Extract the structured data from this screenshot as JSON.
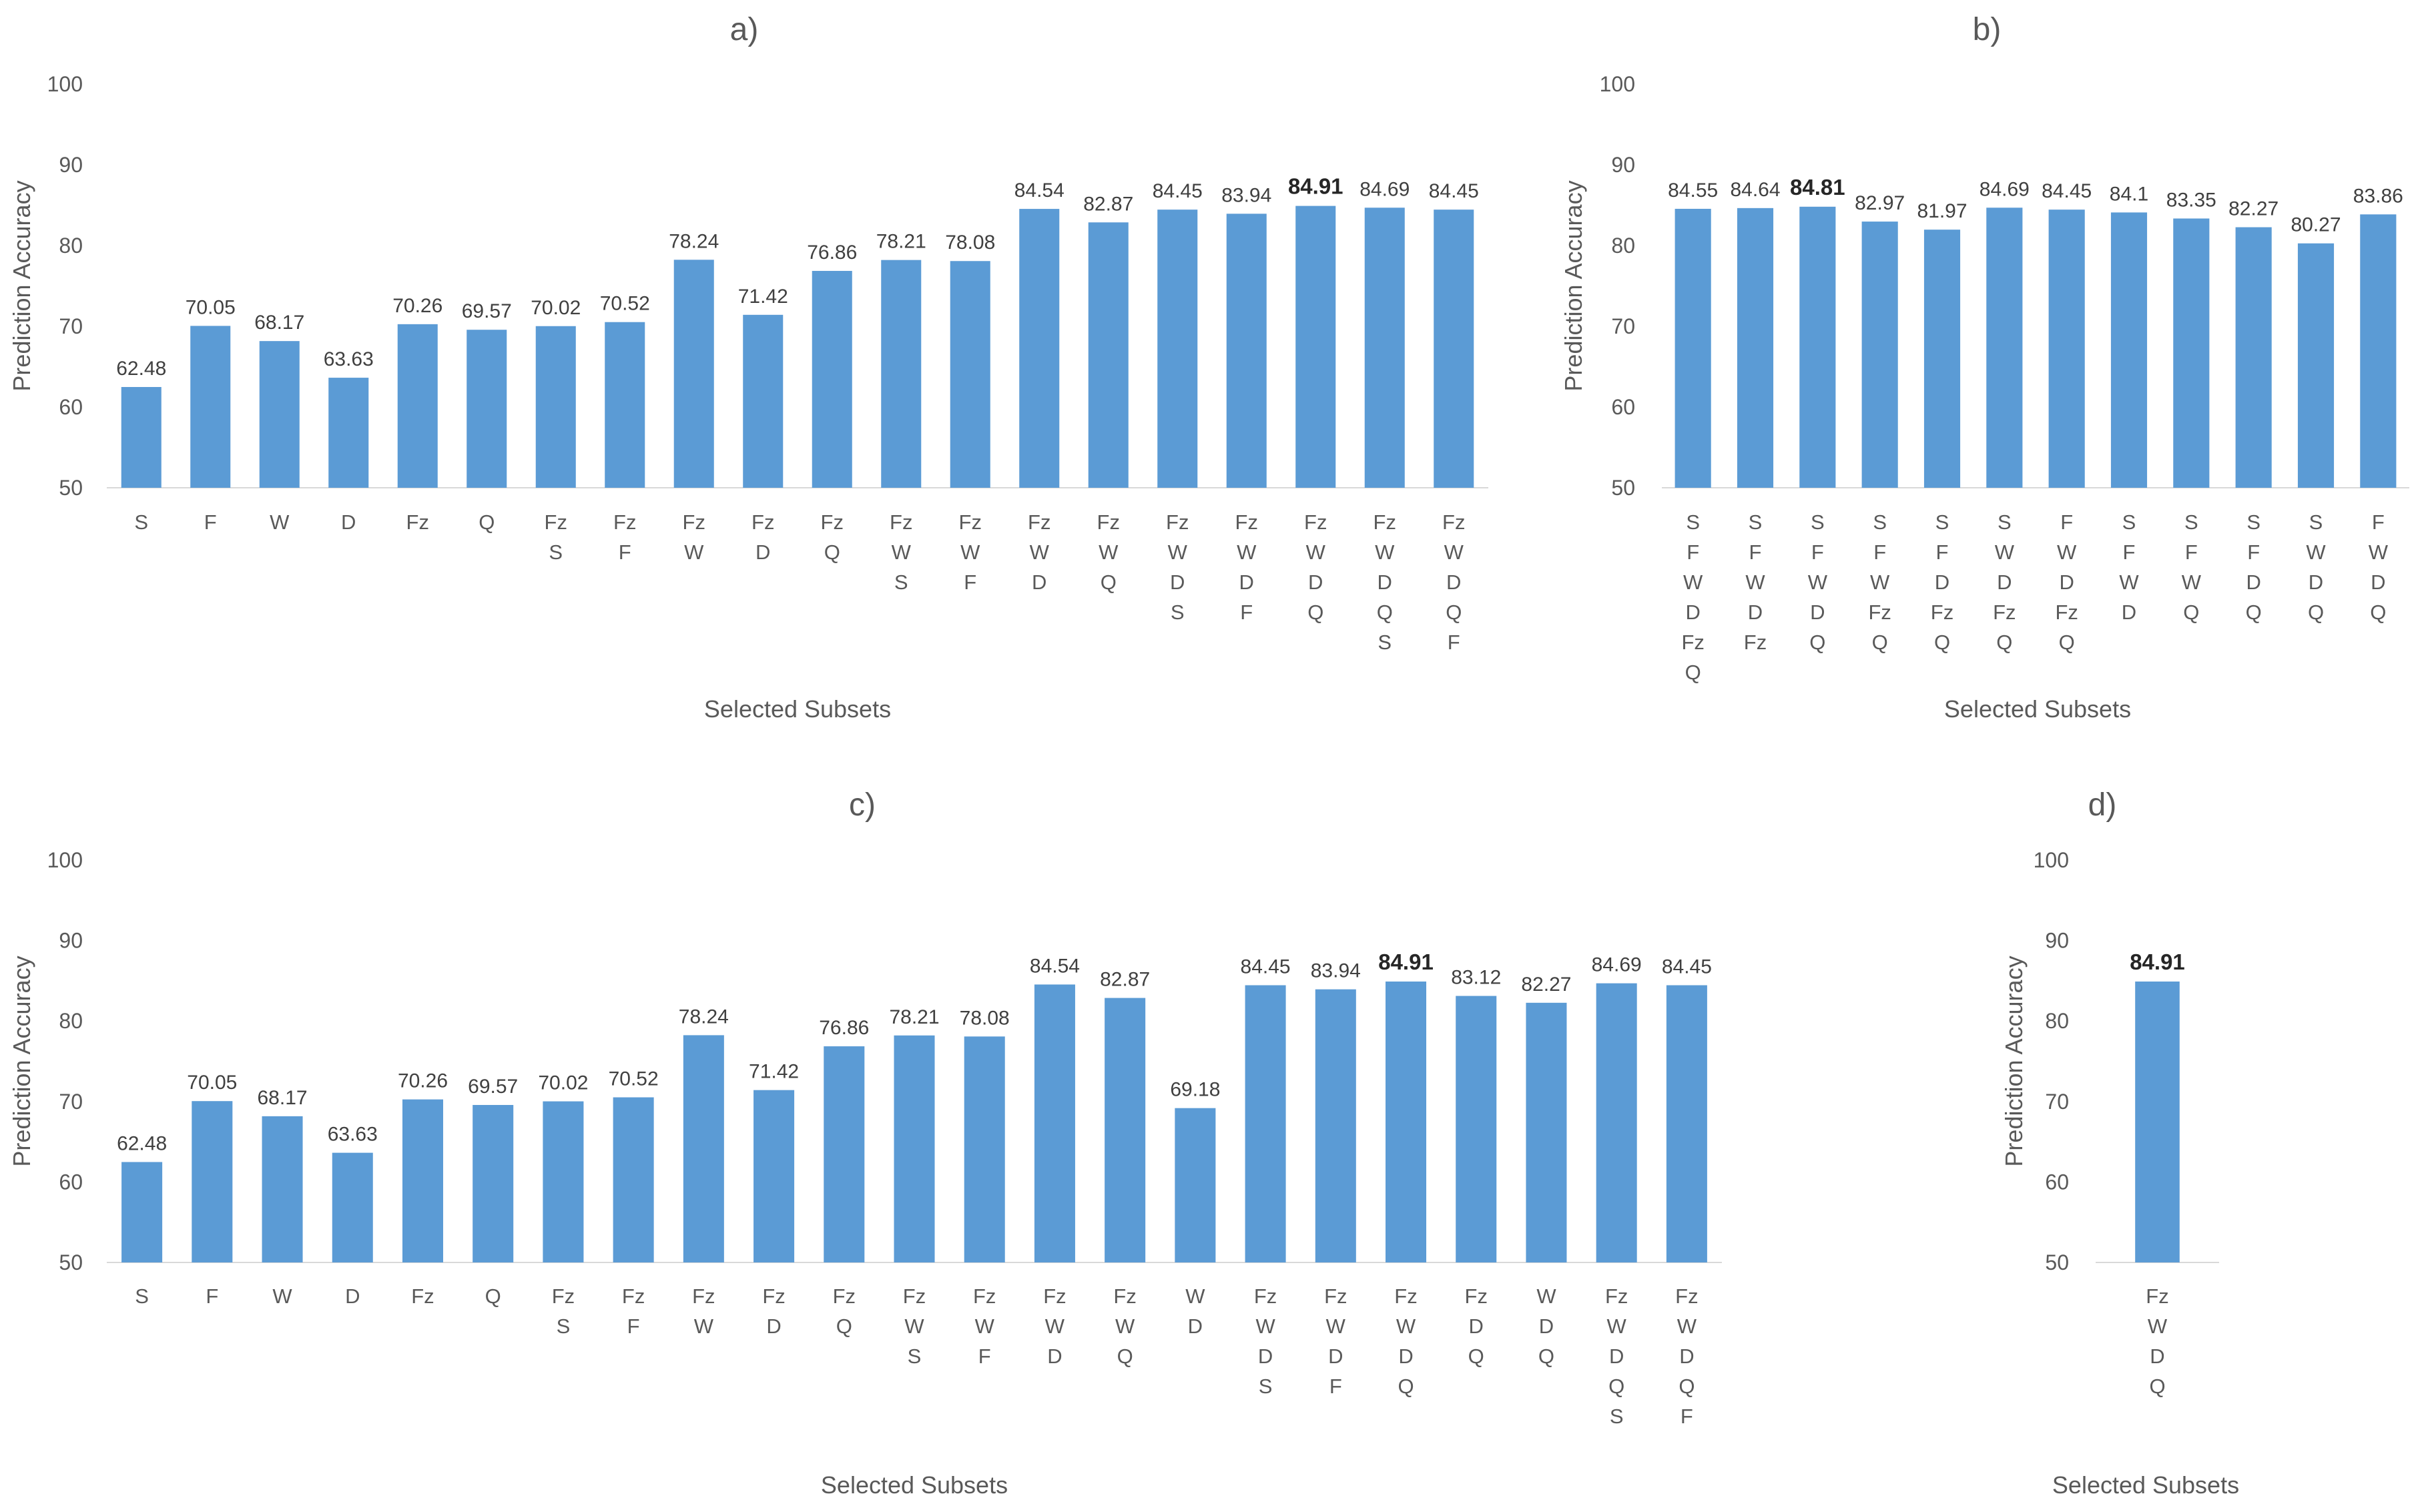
{
  "colors": {
    "bar": "#5b9bd5",
    "text": "#595959",
    "axis_line": "#d9d9d9"
  },
  "chart_data": [
    {
      "panel": "a)",
      "type": "bar",
      "title": "a)",
      "xlabel": "Selected Subsets",
      "ylabel": "Prediction Accuracy",
      "ylim": [
        50,
        100
      ],
      "yticks": [
        50,
        60,
        70,
        80,
        90,
        100
      ],
      "categories": [
        [
          "S"
        ],
        [
          "F"
        ],
        [
          "W"
        ],
        [
          "D"
        ],
        [
          "Fz"
        ],
        [
          "Q"
        ],
        [
          "Fz",
          "S"
        ],
        [
          "Fz",
          "F"
        ],
        [
          "Fz",
          "W"
        ],
        [
          "Fz",
          "D"
        ],
        [
          "Fz",
          "Q"
        ],
        [
          "Fz",
          "W",
          "S"
        ],
        [
          "Fz",
          "W",
          "F"
        ],
        [
          "Fz",
          "W",
          "D"
        ],
        [
          "Fz",
          "W",
          "Q"
        ],
        [
          "Fz",
          "W",
          "D",
          "S"
        ],
        [
          "Fz",
          "W",
          "D",
          "F"
        ],
        [
          "Fz",
          "W",
          "D",
          "Q"
        ],
        [
          "Fz",
          "W",
          "D",
          "Q",
          "S"
        ],
        [
          "Fz",
          "W",
          "D",
          "Q",
          "F"
        ]
      ],
      "values": [
        62.48,
        70.05,
        68.17,
        63.63,
        70.26,
        69.57,
        70.02,
        70.52,
        78.24,
        71.42,
        76.86,
        78.21,
        78.08,
        84.54,
        82.87,
        84.45,
        83.94,
        84.91,
        84.69,
        84.45
      ],
      "highlight_index": 17,
      "grid": false
    },
    {
      "panel": "b)",
      "type": "bar",
      "title": "b)",
      "xlabel": "Selected Subsets",
      "ylabel": "Prediction Accuracy",
      "ylim": [
        50,
        100
      ],
      "yticks": [
        50,
        60,
        70,
        80,
        90,
        100
      ],
      "categories": [
        [
          "S",
          "F",
          "W",
          "D",
          "Fz",
          "Q"
        ],
        [
          "S",
          "F",
          "W",
          "D",
          "Fz"
        ],
        [
          "S",
          "F",
          "W",
          "D",
          "Q"
        ],
        [
          "S",
          "F",
          "W",
          "Fz",
          "Q"
        ],
        [
          "S",
          "F",
          "D",
          "Fz",
          "Q"
        ],
        [
          "S",
          "W",
          "D",
          "Fz",
          "Q"
        ],
        [
          "F",
          "W",
          "D",
          "Fz",
          "Q"
        ],
        [
          "S",
          "F",
          "W",
          "D"
        ],
        [
          "S",
          "F",
          "W",
          "Q"
        ],
        [
          "S",
          "F",
          "D",
          "Q"
        ],
        [
          "S",
          "W",
          "D",
          "Q"
        ],
        [
          "F",
          "W",
          "D",
          "Q"
        ]
      ],
      "values": [
        84.55,
        84.64,
        84.81,
        82.97,
        81.97,
        84.69,
        84.45,
        84.1,
        83.35,
        82.27,
        80.27,
        83.86
      ],
      "highlight_index": 2,
      "grid": false
    },
    {
      "panel": "c)",
      "type": "bar",
      "title": "c)",
      "xlabel": "Selected Subsets",
      "ylabel": "Prediction Accuracy",
      "ylim": [
        50,
        100
      ],
      "yticks": [
        50,
        60,
        70,
        80,
        90,
        100
      ],
      "categories": [
        [
          "S"
        ],
        [
          "F"
        ],
        [
          "W"
        ],
        [
          "D"
        ],
        [
          "Fz"
        ],
        [
          "Q"
        ],
        [
          "Fz",
          "S"
        ],
        [
          "Fz",
          "F"
        ],
        [
          "Fz",
          "W"
        ],
        [
          "Fz",
          "D"
        ],
        [
          "Fz",
          "Q"
        ],
        [
          "Fz",
          "W",
          "S"
        ],
        [
          "Fz",
          "W",
          "F"
        ],
        [
          "Fz",
          "W",
          "D"
        ],
        [
          "Fz",
          "W",
          "Q"
        ],
        [
          "W",
          "D"
        ],
        [
          "Fz",
          "W",
          "D",
          "S"
        ],
        [
          "Fz",
          "W",
          "D",
          "F"
        ],
        [
          "Fz",
          "W",
          "D",
          "Q"
        ],
        [
          "Fz",
          "D",
          "Q"
        ],
        [
          "W",
          "D",
          "Q"
        ],
        [
          "Fz",
          "W",
          "D",
          "Q",
          "S"
        ],
        [
          "Fz",
          "W",
          "D",
          "Q",
          "F"
        ]
      ],
      "values": [
        62.48,
        70.05,
        68.17,
        63.63,
        70.26,
        69.57,
        70.02,
        70.52,
        78.24,
        71.42,
        76.86,
        78.21,
        78.08,
        84.54,
        82.87,
        69.18,
        84.45,
        83.94,
        84.91,
        83.12,
        82.27,
        84.69,
        84.45
      ],
      "highlight_index": 18,
      "grid": false
    },
    {
      "panel": "d)",
      "type": "bar",
      "title": "d)",
      "xlabel": "Selected Subsets",
      "ylabel": "Prediction Accuracy",
      "ylim": [
        50,
        100
      ],
      "yticks": [
        50,
        60,
        70,
        80,
        90,
        100
      ],
      "categories": [
        [
          "Fz",
          "W",
          "D",
          "Q"
        ]
      ],
      "values": [
        84.91
      ],
      "highlight_index": 0,
      "grid": false
    }
  ]
}
